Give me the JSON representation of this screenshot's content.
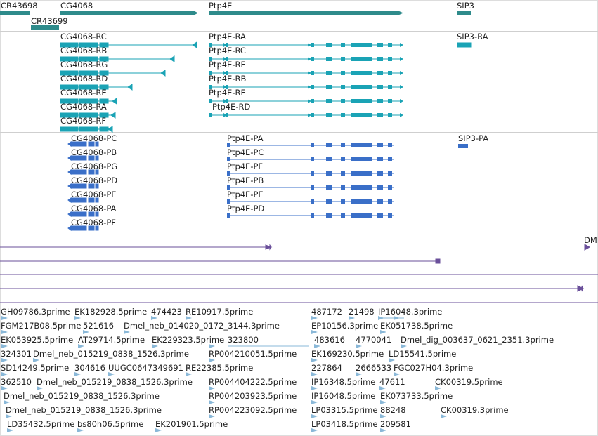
{
  "colors": {
    "gene": "#2e8b8b",
    "transcript": "#1aa3b5",
    "protein": "#3a6fc8",
    "track_line": "#6a4f9a",
    "est": "#8ab8d8"
  },
  "gene_track": {
    "genes": [
      {
        "label": "CR43698"
      },
      {
        "label": "CG4068"
      },
      {
        "label": "Ptp4E"
      },
      {
        "label": "SIP3"
      },
      {
        "label": "CR43699"
      }
    ]
  },
  "transcript_track": {
    "labels": [
      "CG4068-RC",
      "CG4068-RB",
      "CG4068-RG",
      "CG4068-RD",
      "CG4068-RE",
      "CG4068-RA",
      "CG4068-RF",
      "Ptp4E-RA",
      "Ptp4E-RC",
      "Ptp4E-RF",
      "Ptp4E-RB",
      "Ptp4E-RE",
      "Ptp4E-RD",
      "SIP3-RA"
    ]
  },
  "protein_track": {
    "labels": [
      "CG4068-PC",
      "CG4068-PB",
      "CG4068-PG",
      "CG4068-PD",
      "CG4068-PE",
      "CG4068-PA",
      "CG4068-PF",
      "Ptp4E-PA",
      "Ptp4E-PC",
      "Ptp4E-PF",
      "Ptp4E-PB",
      "Ptp4E-PE",
      "Ptp4E-PD",
      "SIP3-PA"
    ]
  },
  "line_track": {
    "labels": [
      "DM"
    ]
  },
  "est_track": {
    "labels": [
      "GH09786.3prime",
      "EK182928.5prime",
      "474423",
      "RE10917.5prime",
      "487172",
      "21498",
      "IP16048.3prime",
      "FGM217B08.5prime",
      "521616",
      "Dmel_neb_014020_0172_3144.3prime",
      "EP10156.3prime",
      "EK051738.5prime",
      "EK053925.5prime",
      "AT29714.5prime",
      "EK229323.5prime",
      "323800",
      "483616",
      "4770041",
      "Dmel_dig_003637_0621_2351.3prime",
      "324301",
      "Dmel_neb_015219_0838_1526.3prime",
      "RP004210051.5prime",
      "EK169230.5prime",
      "LD15541.5prime",
      "SD14249.5prime",
      "304616",
      "UUGC0647349691",
      "RE22385.5prime",
      "227864",
      "2666533",
      "FGC027H04.3prime",
      "362510",
      "Dmel_neb_015219_0838_1526.3prime",
      "RP004404222.5prime",
      "IP16348.5prime",
      "47611",
      "CK00319.5prime",
      "Dmel_neb_015219_0838_1526.3prime",
      "RP004203923.5prime",
      "IP16048.5prime",
      "EK073733.5prime",
      "Dmel_neb_015219_0838_1526.3prime",
      "RP004223092.5prime",
      "LP03315.5prime",
      "88248",
      "CK00319.3prime",
      "LD35432.5prime",
      "bs80h06.5prime",
      "EK201901.5prime",
      "LP03418.5prime",
      "209581"
    ]
  }
}
